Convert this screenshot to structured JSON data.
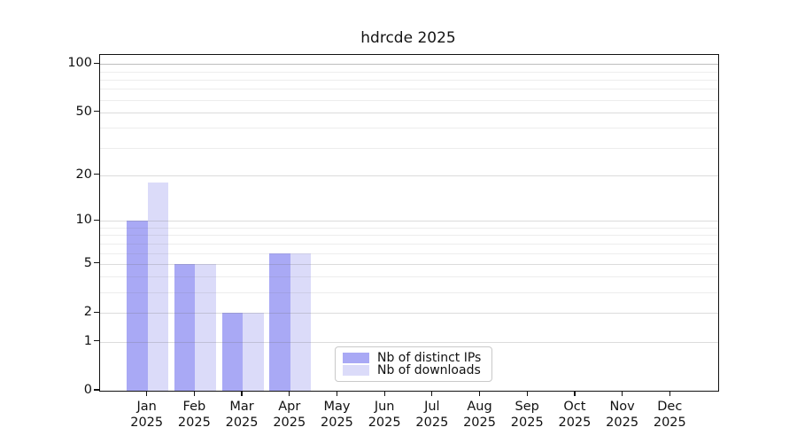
{
  "title": "hdrcde 2025",
  "chart_data": {
    "type": "bar",
    "title": "hdrcde 2025",
    "categories": [
      "Jan",
      "Feb",
      "Mar",
      "Apr",
      "May",
      "Jun",
      "Jul",
      "Aug",
      "Sep",
      "Oct",
      "Nov",
      "Dec"
    ],
    "category_year": "2025",
    "series": [
      {
        "name": "Nb of distinct IPs",
        "color": "#a9a9f5",
        "values": [
          10,
          5,
          2,
          6,
          0,
          0,
          0,
          0,
          0,
          0,
          0,
          0
        ]
      },
      {
        "name": "Nb of downloads",
        "color": "#dbdbf9",
        "values": [
          18,
          5,
          2,
          6,
          0,
          0,
          0,
          0,
          0,
          0,
          0,
          0
        ]
      }
    ],
    "y_scale": "log10(1+v)",
    "y_major_ticks": [
      0,
      1,
      2,
      5,
      10,
      20,
      50,
      100
    ],
    "y_minor_ticks": [
      3,
      4,
      6,
      7,
      8,
      9,
      30,
      40,
      60,
      70,
      80,
      90
    ],
    "ylim": [
      0,
      115
    ],
    "grid": true,
    "legend_position": "bottom-center"
  },
  "colors": {
    "bar_dark": "#a9a9f5",
    "bar_light": "#dbdbf9",
    "axis": "#111111",
    "grid_minor": "#ececec",
    "grid_major": "#dcdcdc"
  }
}
